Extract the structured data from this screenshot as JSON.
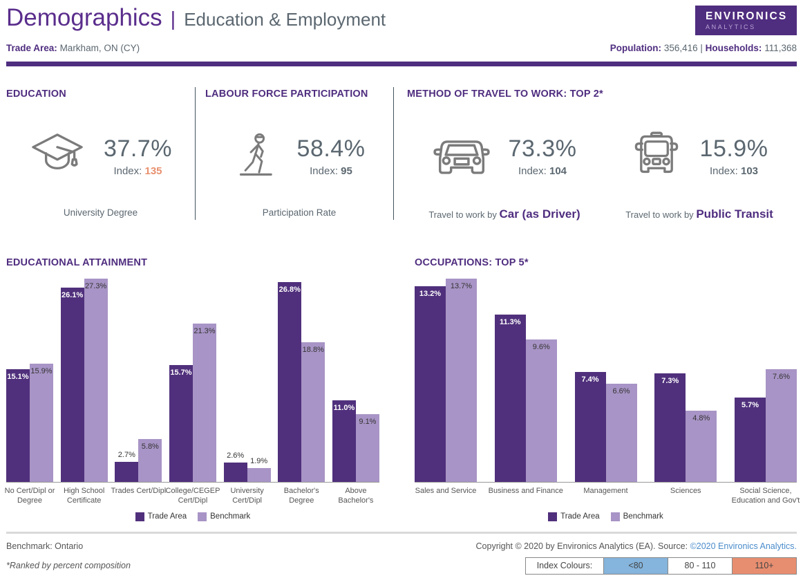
{
  "header": {
    "title": "Demographics",
    "title_separator": "|",
    "subtitle": "Education & Employment",
    "logo_line1": "ENVIRONICS",
    "logo_line2": "ANALYTICS",
    "trade_area_label": "Trade Area:",
    "trade_area_value": "Markham, ON (CY)",
    "population_label": "Population:",
    "population_value": "356,416",
    "pop_households_separator": "|",
    "households_label": "Households:",
    "households_value": "111,368"
  },
  "stats": {
    "education": {
      "section_title": "EDUCATION",
      "icon": "graduation-cap-icon",
      "value": "37.7%",
      "index_label": "Index:",
      "index_value": "135",
      "label": "University Degree"
    },
    "labour_force": {
      "section_title": "LABOUR FORCE PARTICIPATION",
      "icon": "walking-person-icon",
      "value": "58.4%",
      "index_label": "Index:",
      "index_value": "95",
      "label": "Participation Rate"
    },
    "travel": {
      "section_title": "METHOD OF TRAVEL TO WORK: TOP 2*",
      "items": [
        {
          "icon": "car-icon",
          "value": "73.3%",
          "index_label": "Index:",
          "index_value": "104",
          "label_prefix": "Travel to work by",
          "label_bold": "Car (as Driver)"
        },
        {
          "icon": "bus-icon",
          "value": "15.9%",
          "index_label": "Index:",
          "index_value": "103",
          "label_prefix": "Travel to work by",
          "label_bold": "Public Transit"
        }
      ]
    }
  },
  "chart_data": [
    {
      "type": "bar",
      "title": "EDUCATIONAL ATTAINMENT",
      "categories": [
        "No Cert/Dipl or Degree",
        "High School Certificate",
        "Trades Cert/Dipl",
        "College/CEGEP Cert/Dipl",
        "University Cert/Dipl",
        "Bachelor's Degree",
        "Above Bachelor's"
      ],
      "category_lines": [
        [
          "No Cert/Dipl or",
          "Degree"
        ],
        [
          "High School",
          "Certificate"
        ],
        [
          "Trades Cert/Dipl"
        ],
        [
          "College/CEGEP",
          "Cert/Dipl"
        ],
        [
          "University",
          "Cert/Dipl"
        ],
        [
          "Bachelor's",
          "Degree"
        ],
        [
          "Above",
          "Bachelor's"
        ]
      ],
      "series": [
        {
          "name": "Trade Area",
          "color": "#50307C",
          "values": [
            15.1,
            26.1,
            2.7,
            15.7,
            2.6,
            26.8,
            11.0
          ],
          "value_labels": [
            "15.1%",
            "26.1%",
            "2.7%",
            "15.7%",
            "2.6%",
            "26.8%",
            "11.0%"
          ]
        },
        {
          "name": "Benchmark",
          "color": "#A894C6",
          "values": [
            15.9,
            27.3,
            5.8,
            21.3,
            1.9,
            18.8,
            9.1
          ],
          "value_labels": [
            "15.9%",
            "27.3%",
            "5.8%",
            "21.3%",
            "1.9%",
            "18.8%",
            "9.1%"
          ]
        }
      ],
      "value_suffix": "%",
      "ylim": [
        0,
        27.3
      ],
      "grid": false,
      "legend_position": "bottom"
    },
    {
      "type": "bar",
      "title": "OCCUPATIONS: TOP 5*",
      "categories": [
        "Sales and Service",
        "Business and Finance",
        "Management",
        "Sciences",
        "Social Science, Education and Gov't"
      ],
      "category_lines": [
        [
          "Sales and Service"
        ],
        [
          "Business and Finance"
        ],
        [
          "Management"
        ],
        [
          "Sciences"
        ],
        [
          "Social Science,",
          "Education and Gov't"
        ]
      ],
      "series": [
        {
          "name": "Trade Area",
          "color": "#50307C",
          "values": [
            13.2,
            11.3,
            7.4,
            7.3,
            5.7
          ],
          "value_labels": [
            "13.2%",
            "11.3%",
            "7.4%",
            "7.3%",
            "5.7%"
          ]
        },
        {
          "name": "Benchmark",
          "color": "#A894C6",
          "values": [
            13.7,
            9.6,
            6.6,
            4.8,
            7.6
          ],
          "value_labels": [
            "13.7%",
            "9.6%",
            "6.6%",
            "4.8%",
            "7.6%"
          ]
        }
      ],
      "value_suffix": "%",
      "ylim": [
        0,
        13.7
      ],
      "grid": false,
      "legend_position": "bottom"
    }
  ],
  "footer": {
    "benchmark": "Benchmark: Ontario",
    "ranked_note": "*Ranked by percent composition",
    "copyright_text": "Copyright © 2020 by Environics Analytics (EA). Source: ",
    "copyright_link": "©2020 Environics Analytics.",
    "index_colours": {
      "label": "Index Colours:",
      "ranges": [
        {
          "label": "<80",
          "bg": "#85B4DC"
        },
        {
          "label": "80 - 110",
          "bg": "#FFFFFF"
        },
        {
          "label": "110+",
          "bg": "#E88E70"
        }
      ]
    }
  },
  "colors": {
    "brand_purple": "#4F2D7F",
    "title_purple": "#5A2D8C",
    "slate_text": "#5B6770",
    "bar_trade_area": "#50307C",
    "bar_benchmark": "#A894C6",
    "index_high_text": "#E8906E",
    "link_blue": "#4A8CCB",
    "index_lt80_bg": "#85B4DC",
    "index_80_110_bg": "#FFFFFF",
    "index_110plus_bg": "#E88E70"
  }
}
